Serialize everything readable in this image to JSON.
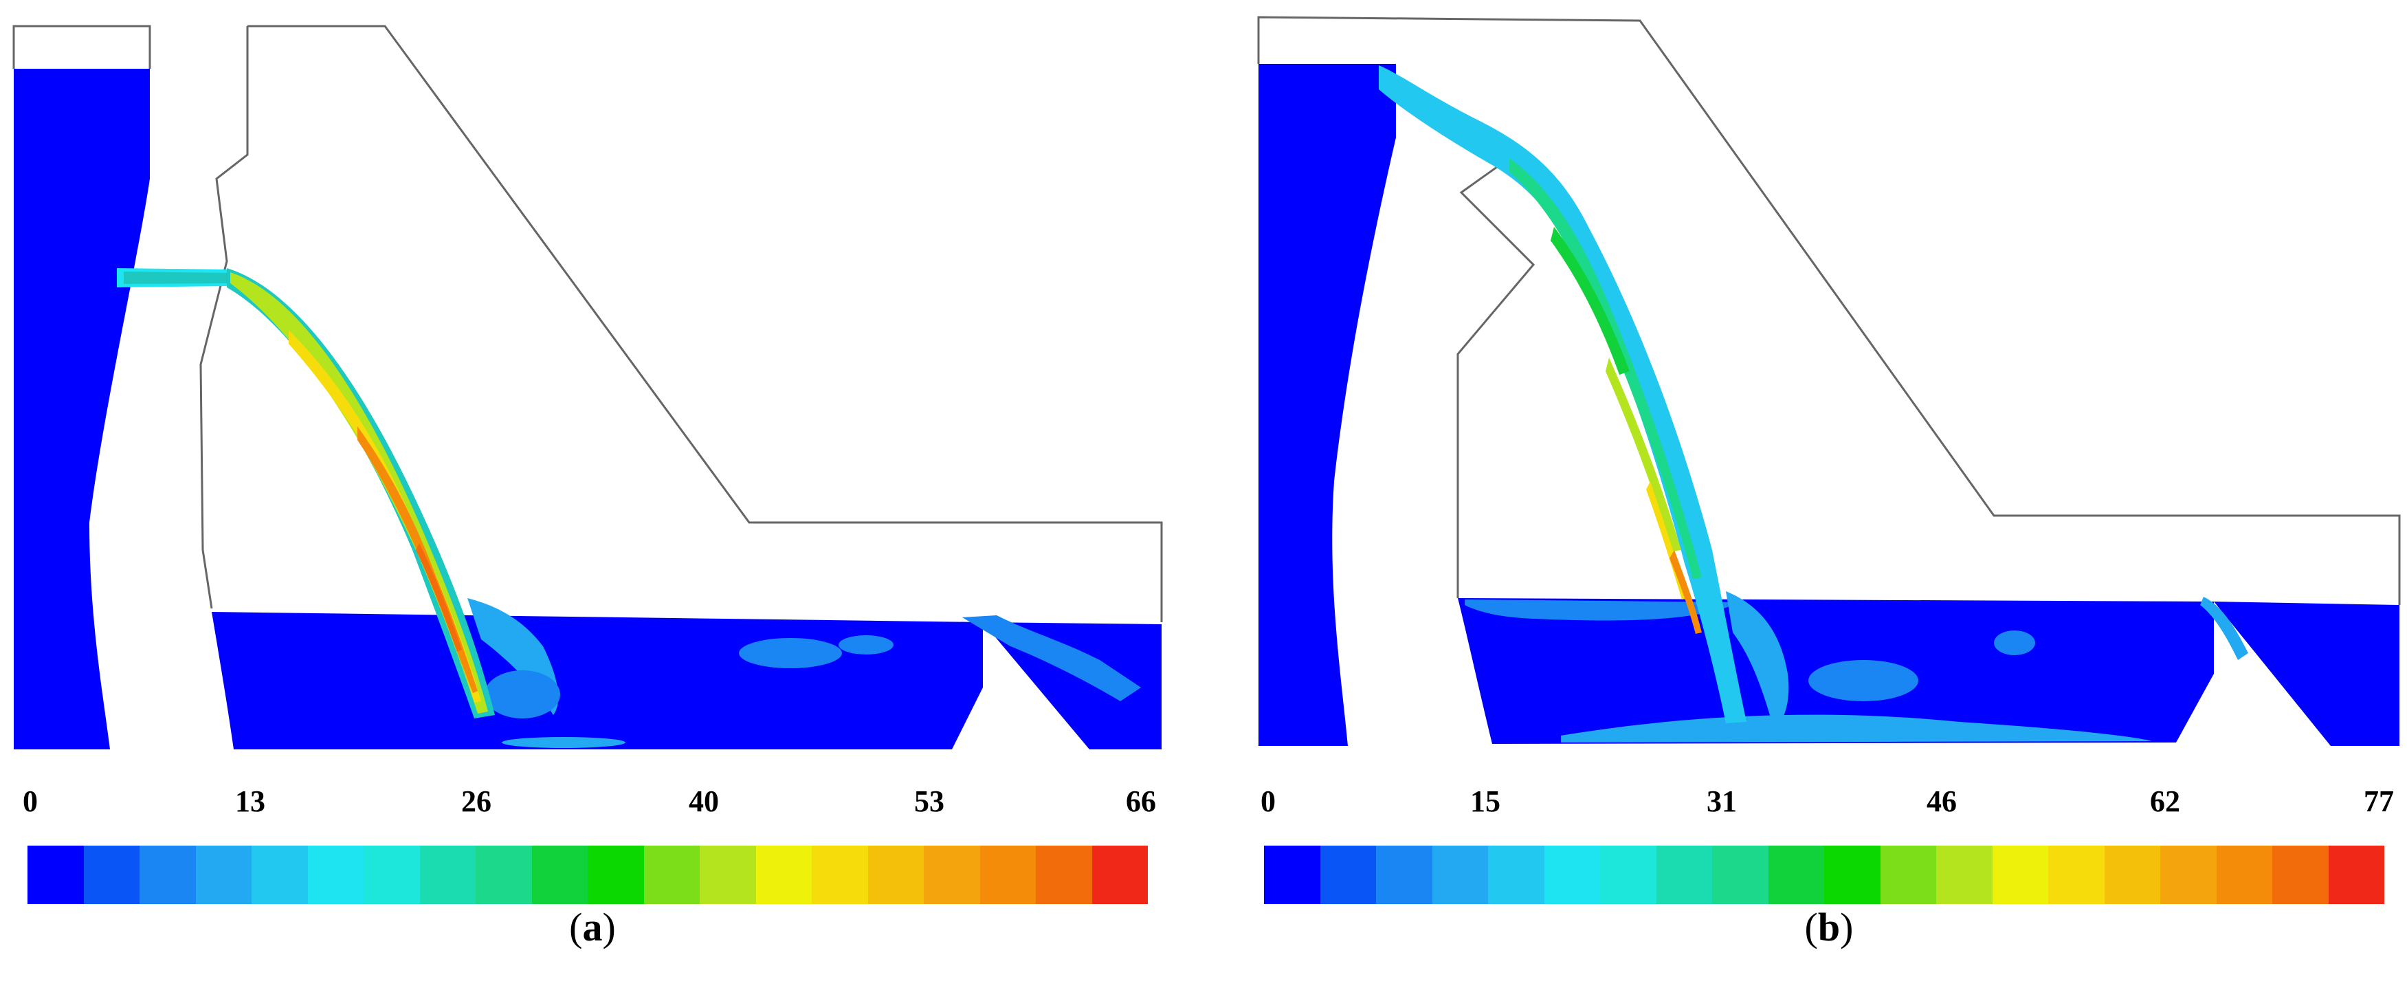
{
  "colormap": [
    "#0000ff",
    "#0a55f5",
    "#1a86f3",
    "#22a9f2",
    "#22c8f0",
    "#1ee4f2",
    "#1de6da",
    "#1bdcb0",
    "#1cd88a",
    "#12d23c",
    "#0ad800",
    "#7cde18",
    "#b4e41e",
    "#eef20a",
    "#f6dc0a",
    "#f5c00a",
    "#f4a40c",
    "#f48c0a",
    "#f26c0c",
    "#f02818"
  ],
  "panels": [
    {
      "id": "a",
      "caption_open": "(",
      "caption_letter": "a",
      "caption_close": ")",
      "scale_ticks": [
        "0",
        "13",
        "26",
        "40",
        "53",
        "66"
      ]
    },
    {
      "id": "b",
      "caption_open": "(",
      "caption_letter": "b",
      "caption_close": ")",
      "scale_ticks": [
        "0",
        "15",
        "31",
        "46",
        "62",
        "77"
      ]
    }
  ]
}
